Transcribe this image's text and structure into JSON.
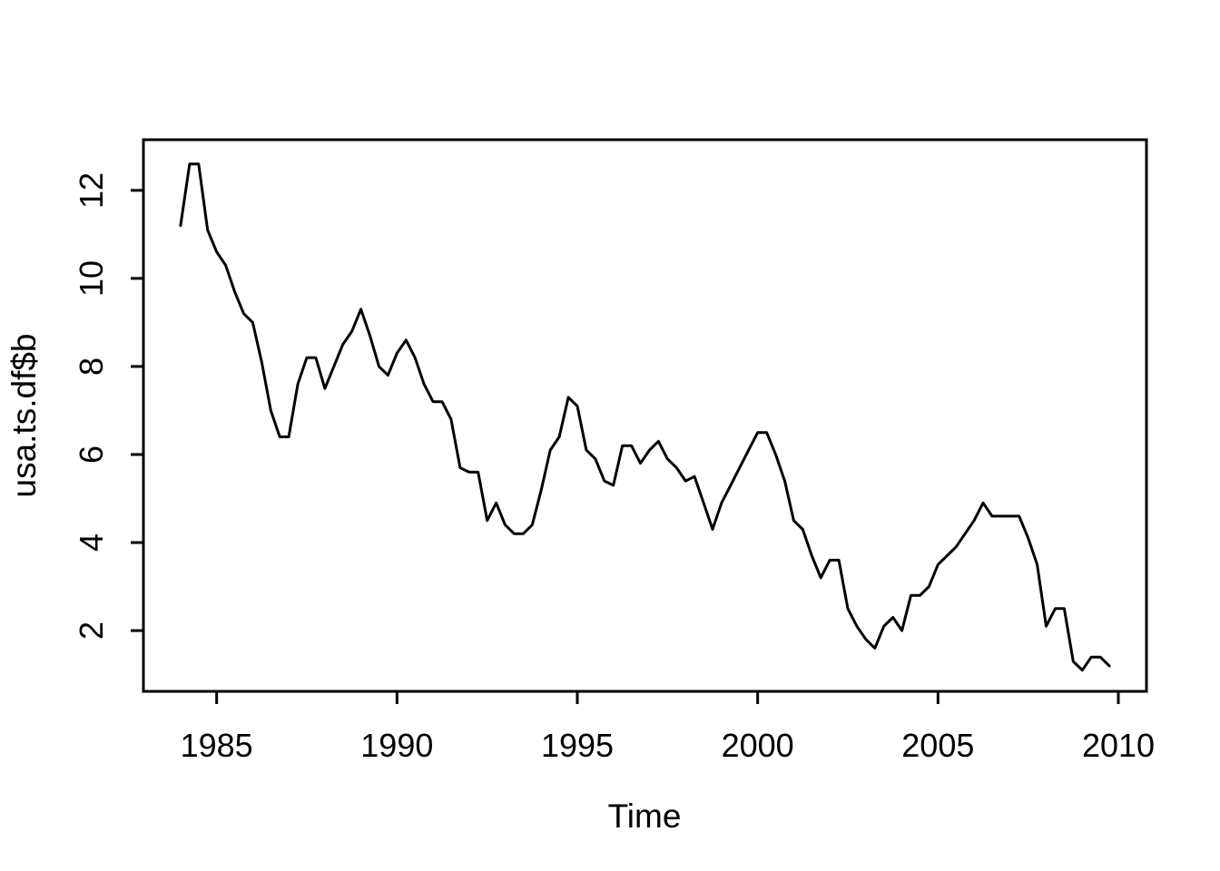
{
  "chart_data": {
    "type": "line",
    "title": "",
    "xlabel": "Time",
    "ylabel": "usa.ts.df$b",
    "grid": false,
    "legend_position": "none",
    "line_color": "#000000",
    "background_color": "#ffffff",
    "xlim": [
      1982.97,
      2010.78
    ],
    "ylim": [
      0.62,
      13.15
    ],
    "x_ticks": [
      "1985",
      "1990",
      "1995",
      "2000",
      "2005",
      "2010"
    ],
    "x_tick_values": [
      1985,
      1990,
      1995,
      2000,
      2005,
      2010
    ],
    "y_ticks": [
      "2",
      "4",
      "6",
      "8",
      "10",
      "12"
    ],
    "y_tick_values": [
      2,
      4,
      6,
      8,
      10,
      12
    ],
    "series": [
      {
        "name": "usa.ts.df$b",
        "start": 1984.0,
        "step": 0.25,
        "values": [
          11.2,
          12.6,
          12.6,
          11.1,
          10.6,
          10.3,
          9.7,
          9.2,
          9.0,
          8.1,
          7.0,
          6.4,
          6.4,
          7.6,
          8.2,
          8.2,
          7.5,
          8.0,
          8.5,
          8.8,
          9.3,
          8.7,
          8.0,
          7.8,
          8.3,
          8.6,
          8.2,
          7.6,
          7.2,
          7.2,
          6.8,
          5.7,
          5.6,
          5.6,
          4.5,
          4.9,
          4.4,
          4.2,
          4.2,
          4.4,
          5.2,
          6.1,
          6.4,
          7.3,
          7.1,
          6.1,
          5.9,
          5.4,
          5.3,
          6.2,
          6.2,
          5.8,
          6.1,
          6.3,
          5.9,
          5.7,
          5.4,
          5.5,
          4.9,
          4.3,
          4.9,
          5.3,
          5.7,
          6.1,
          6.5,
          6.5,
          6.0,
          5.4,
          4.5,
          4.3,
          3.7,
          3.2,
          3.6,
          3.6,
          2.5,
          2.1,
          1.8,
          1.6,
          2.1,
          2.3,
          2.0,
          2.8,
          2.8,
          3.0,
          3.5,
          3.7,
          3.9,
          4.2,
          4.5,
          4.9,
          4.6,
          4.6,
          4.6,
          4.6,
          4.1,
          3.5,
          2.1,
          2.5,
          2.5,
          1.3,
          1.1,
          1.4,
          1.4,
          1.2
        ]
      }
    ]
  }
}
